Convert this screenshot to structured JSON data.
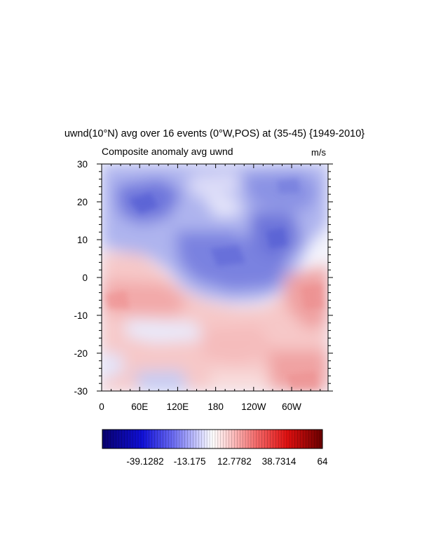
{
  "chart_data": {
    "type": "heatmap",
    "title": "uwnd(10°N) avg over 16 events (0°W,POS) at (35-45) {1949-2010}",
    "left_label": "Composite anomaly avg uwnd",
    "units": "m/s",
    "x_axis": {
      "tick_labels": [
        "0",
        "60E",
        "120E",
        "180",
        "120W",
        "60W"
      ],
      "tick_values_deg_east": [
        0,
        60,
        120,
        180,
        240,
        300
      ],
      "range_deg_east": [
        0,
        357.5
      ]
    },
    "y_axis": {
      "tick_labels": [
        "30",
        "20",
        "10",
        "0",
        "-10",
        "-20",
        "-30"
      ],
      "tick_values": [
        30,
        20,
        10,
        0,
        -10,
        -20,
        -30
      ],
      "range": [
        -30,
        30
      ]
    },
    "grid": false,
    "colorbar": {
      "placement": "bottom",
      "orientation": "horizontal",
      "colormap": "blue-white-red",
      "colors": {
        "low": "#08006e",
        "mid_low": "#2a2af0",
        "center": "#ffffff",
        "mid_high": "#ef2020",
        "high": "#6a0000"
      },
      "labels": [
        "-39.1282",
        "-13.175",
        "12.7782",
        "38.7314",
        "64"
      ],
      "label_values": [
        -39.1282,
        -13.175,
        12.7782,
        38.7314,
        64
      ]
    },
    "field_description_points": [
      {
        "lon": 60,
        "lag": 22,
        "value": -30
      },
      {
        "lon": 90,
        "lag": 25,
        "value": -20
      },
      {
        "lon": 200,
        "lag": 20,
        "value": -8
      },
      {
        "lon": 270,
        "lag": 18,
        "value": -22
      },
      {
        "lon": 220,
        "lag": 5,
        "value": -25
      },
      {
        "lon": 150,
        "lag": 0,
        "value": -15
      },
      {
        "lon": 10,
        "lag": -5,
        "value": 14
      },
      {
        "lon": 320,
        "lag": -2,
        "value": 18
      },
      {
        "lon": 200,
        "lag": -22,
        "value": 10
      },
      {
        "lon": 300,
        "lag": -28,
        "value": 16
      },
      {
        "lon": 120,
        "lag": -28,
        "value": -6
      }
    ]
  }
}
